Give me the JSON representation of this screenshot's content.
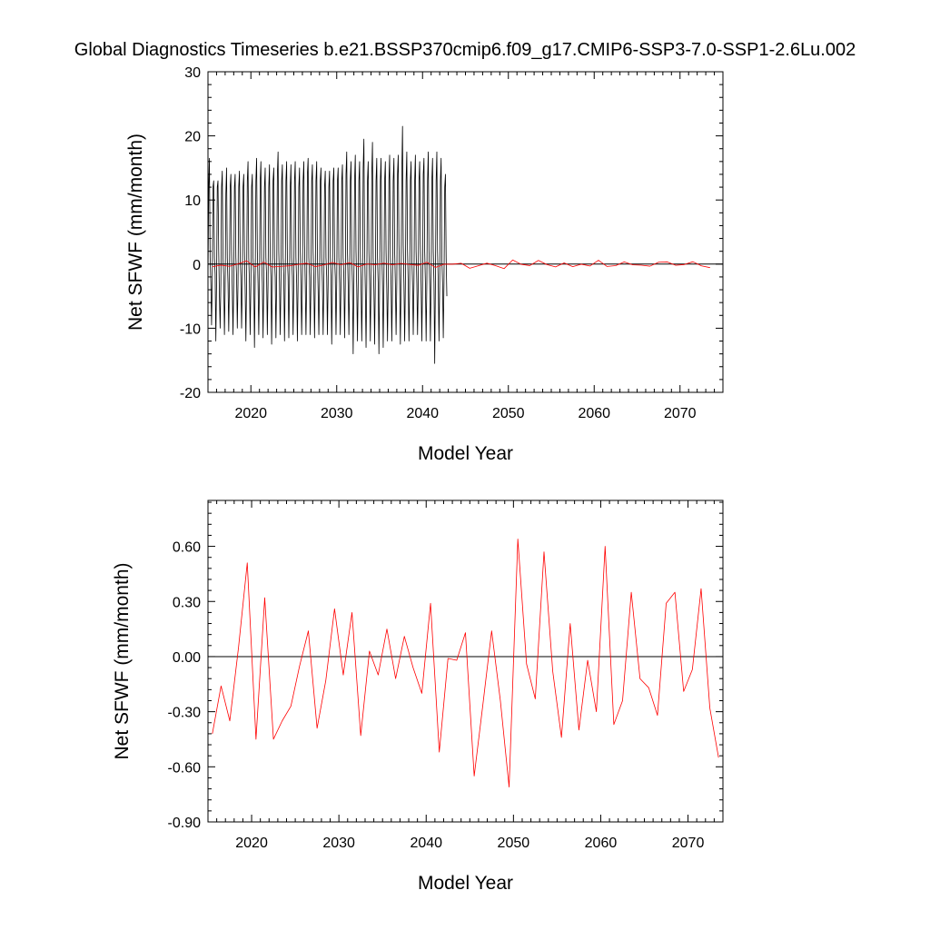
{
  "title": "Global Diagnostics Timeseries b.e21.BSSP370cmip6.f09_g17.CMIP6-SSP3-7.0-SSP1-2.6Lu.002",
  "chart_data": [
    {
      "type": "line",
      "xlabel": "Model Year",
      "ylabel": "Net SFWF (mm/month)",
      "xlim": [
        2015,
        2075
      ],
      "ylim": [
        -20,
        30
      ],
      "xticks": [
        2020,
        2030,
        2040,
        2050,
        2060,
        2070
      ],
      "yticks": [
        -20,
        -10,
        0,
        10,
        20,
        30
      ],
      "ytick_labels": [
        "-20",
        "-10",
        "0",
        "10",
        "20",
        "30"
      ],
      "zero_line": true,
      "series": [
        {
          "color": "#000000",
          "x_start": 2015.0,
          "x_step": 0.0833333,
          "values": [
            -3,
            12,
            16.5,
            1,
            -3,
            -9.5,
            -3,
            12,
            13,
            1,
            -1.5,
            -12,
            -3,
            12,
            13,
            2,
            -5,
            -10,
            -3,
            12,
            14.5,
            1,
            -2,
            -11,
            -4,
            11,
            15,
            1,
            -3,
            -10.5,
            -3,
            12,
            14,
            2,
            -4,
            -11,
            -3,
            12,
            14,
            1,
            -2,
            -10,
            -3,
            12,
            14.5,
            1,
            -2,
            -10,
            -3,
            12,
            14,
            2,
            -4,
            -12,
            -3,
            13,
            16,
            1,
            -3,
            -11,
            -3,
            12,
            14,
            1,
            -2,
            -13,
            -3,
            13,
            16.5,
            2,
            -3,
            -11,
            -3,
            13,
            16,
            1,
            -3,
            -11.5,
            -3,
            12,
            15,
            1,
            -2,
            -11,
            -3,
            12,
            15.5,
            1,
            -2,
            -12.5,
            -3,
            13,
            15,
            1,
            -2,
            -11.5,
            -3,
            14,
            17.5,
            2,
            -3,
            -11,
            -3,
            13,
            15.5,
            1,
            -2,
            -12,
            -3,
            13,
            16,
            1,
            -2,
            -11.5,
            -3,
            12,
            15.5,
            1,
            -2,
            -11,
            -3,
            13,
            16,
            1,
            -3,
            -12,
            -3,
            12,
            15,
            2,
            -3,
            -11,
            -3,
            13,
            16,
            3,
            -3,
            -11,
            -3,
            14,
            16.5,
            1,
            -2,
            -11,
            -3,
            13,
            15.5,
            2,
            -3,
            -11.5,
            -3,
            13,
            16,
            1,
            -4,
            -11,
            -3,
            13,
            15,
            1,
            -3,
            -11,
            -3,
            12,
            14.5,
            1,
            -2,
            -11,
            -3,
            12,
            14.5,
            1,
            -2,
            -12.5,
            -3,
            13,
            15,
            1,
            -2,
            -11,
            -3,
            13,
            15,
            1,
            -3,
            -11,
            -3,
            13,
            15.5,
            1,
            -2,
            -11.5,
            -3,
            14,
            17.5,
            2,
            -3,
            -11,
            -3,
            13,
            16,
            1,
            -3,
            -14,
            -3,
            13,
            17,
            2,
            -4,
            -12,
            -3,
            13,
            16,
            1,
            -3,
            -12,
            -3,
            15,
            19.5,
            2,
            -4,
            -13,
            -3,
            13,
            16,
            2,
            -3,
            -12,
            -3,
            14,
            19,
            1,
            -4,
            -12.5,
            -3,
            13,
            16.5,
            1,
            -3,
            -14,
            -3,
            13,
            16.5,
            2,
            -3,
            -13,
            -3,
            13,
            16,
            2,
            -4,
            -12,
            -3,
            13,
            17,
            1,
            -3,
            -12,
            -3,
            13,
            16.5,
            2,
            -3,
            -11,
            -3,
            14,
            17,
            3,
            -3,
            -12.5,
            -3,
            14,
            21.5,
            3,
            -3,
            -12,
            -3,
            13,
            17.5,
            2,
            -3,
            -12,
            -3,
            13,
            16,
            1,
            -3,
            -11,
            -3,
            13,
            17,
            2,
            -3,
            -11,
            -3,
            13,
            16,
            3,
            -3,
            -12,
            -3,
            14,
            16.5,
            2,
            -3,
            -12,
            -3,
            13,
            17.5,
            2,
            -3,
            -12,
            -3,
            13,
            16.5,
            2,
            -3,
            -15.5,
            -3,
            13,
            17.5,
            2,
            -3,
            -12,
            -3,
            13,
            16.5,
            1,
            -3,
            -11.5,
            -3,
            12,
            14,
            1,
            -5
          ]
        },
        {
          "color": "#ff0000",
          "x_start": 2015.5,
          "x_step": 1,
          "values": [
            -0.42,
            -0.16,
            -0.35,
            0.05,
            0.51,
            -0.45,
            0.32,
            -0.45,
            -0.35,
            -0.27,
            -0.05,
            0.14,
            -0.39,
            -0.13,
            0.26,
            -0.1,
            0.24,
            -0.43,
            0.03,
            -0.1,
            0.15,
            -0.12,
            0.11,
            -0.06,
            -0.2,
            0.29,
            -0.52,
            -0.01,
            -0.02,
            0.13,
            -0.65,
            -0.26,
            0.14,
            -0.24,
            -0.71,
            0.64,
            -0.04,
            -0.23,
            0.57,
            -0.08,
            -0.44,
            0.18,
            -0.4,
            -0.02,
            -0.3,
            0.6,
            -0.37,
            -0.24,
            0.35,
            -0.12,
            -0.17,
            -0.32,
            0.29,
            0.35,
            -0.19,
            -0.07,
            0.37,
            -0.28,
            -0.55
          ]
        }
      ]
    },
    {
      "type": "line",
      "xlabel": "Model Year",
      "ylabel": "Net SFWF (mm/month)",
      "xlim": [
        2015,
        2074
      ],
      "ylim": [
        -0.9,
        0.85
      ],
      "xticks": [
        2020,
        2030,
        2040,
        2050,
        2060,
        2070
      ],
      "yticks": [
        -0.9,
        -0.6,
        -0.3,
        0.0,
        0.3,
        0.6
      ],
      "ytick_labels": [
        "-0.90",
        "-0.60",
        "-0.30",
        "0.00",
        "0.30",
        "0.60"
      ],
      "zero_line": true,
      "series": [
        {
          "color": "#ff0000",
          "x_start": 2015.5,
          "x_step": 1,
          "values": [
            -0.42,
            -0.16,
            -0.35,
            0.05,
            0.51,
            -0.45,
            0.32,
            -0.45,
            -0.35,
            -0.27,
            -0.05,
            0.14,
            -0.39,
            -0.13,
            0.26,
            -0.1,
            0.24,
            -0.43,
            0.03,
            -0.1,
            0.15,
            -0.12,
            0.11,
            -0.06,
            -0.2,
            0.29,
            -0.52,
            -0.01,
            -0.02,
            0.13,
            -0.65,
            -0.26,
            0.14,
            -0.24,
            -0.71,
            0.64,
            -0.04,
            -0.23,
            0.57,
            -0.08,
            -0.44,
            0.18,
            -0.4,
            -0.02,
            -0.3,
            0.6,
            -0.37,
            -0.24,
            0.35,
            -0.12,
            -0.17,
            -0.32,
            0.29,
            0.35,
            -0.19,
            -0.07,
            0.37,
            -0.28,
            -0.55
          ]
        }
      ]
    }
  ]
}
